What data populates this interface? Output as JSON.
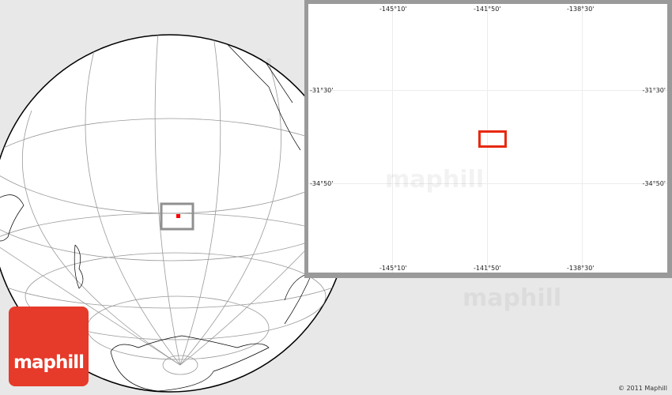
{
  "watermark": "maphill",
  "logo": {
    "text": "maphill",
    "color": "#e63a2a"
  },
  "copyright": "© 2011 Maphill",
  "inset": {
    "longitude_labels": [
      "-145°10'",
      "-141°50'",
      "-138°30'"
    ],
    "latitude_labels": [
      "-31°30'",
      "-34°50'"
    ],
    "marker_color": "#e8280f"
  },
  "globe": {
    "locator_color": "#ff0000",
    "frame_color": "#909090"
  }
}
